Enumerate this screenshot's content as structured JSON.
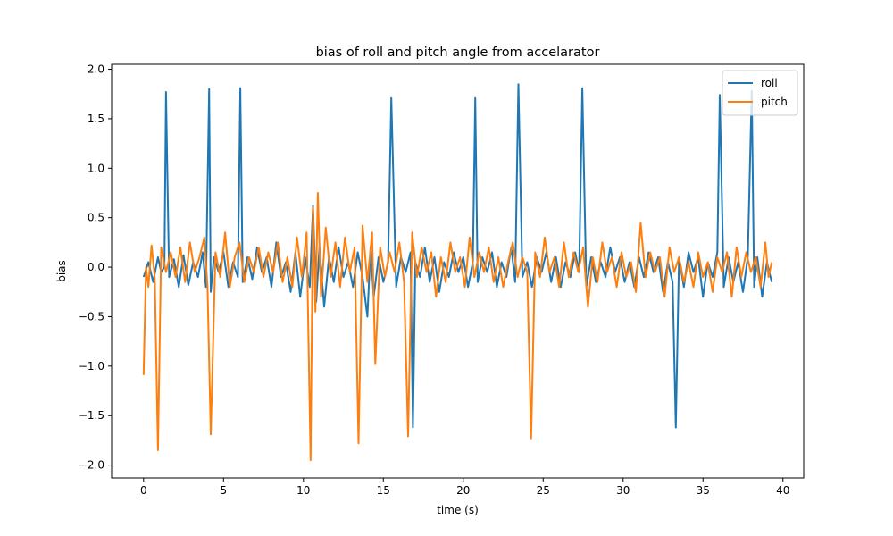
{
  "chart_data": {
    "type": "line",
    "title": "bias of roll and pitch angle from accelarator",
    "xlabel": "time (s)",
    "ylabel": "bias",
    "xlim": [
      -2,
      41.3
    ],
    "ylim": [
      -2.13,
      2.05
    ],
    "xticks": [
      0,
      5,
      10,
      15,
      20,
      25,
      30,
      35,
      40
    ],
    "xtick_labels": [
      "0",
      "5",
      "10",
      "15",
      "20",
      "25",
      "30",
      "35",
      "40"
    ],
    "yticks": [
      -2.0,
      -1.5,
      -1.0,
      -0.5,
      0.0,
      0.5,
      1.0,
      1.5,
      2.0
    ],
    "ytick_labels": [
      "−2.0",
      "−1.5",
      "−1.0",
      "−0.5",
      "0.0",
      "0.5",
      "1.0",
      "1.5",
      "2.0"
    ],
    "grid": false,
    "legend_position": "top-right",
    "series": [
      {
        "name": "roll",
        "color": "#1f77b4",
        "x": [
          0.0,
          0.3,
          0.6,
          0.9,
          1.1,
          1.3,
          1.4,
          1.6,
          1.9,
          2.2,
          2.5,
          2.8,
          3.1,
          3.4,
          3.7,
          3.9,
          4.1,
          4.2,
          4.4,
          4.7,
          5.0,
          5.3,
          5.6,
          5.9,
          6.05,
          6.2,
          6.5,
          6.8,
          7.1,
          7.4,
          7.7,
          8.0,
          8.3,
          8.6,
          8.9,
          9.2,
          9.5,
          9.8,
          10.1,
          10.4,
          10.6,
          10.8,
          11.0,
          11.3,
          11.6,
          11.9,
          12.2,
          12.5,
          12.8,
          13.1,
          13.4,
          13.7,
          14.0,
          14.2,
          14.4,
          14.7,
          15.0,
          15.3,
          15.5,
          15.8,
          16.1,
          16.4,
          16.7,
          16.85,
          17.0,
          17.3,
          17.6,
          17.9,
          18.2,
          18.5,
          18.8,
          19.1,
          19.4,
          19.7,
          20.0,
          20.3,
          20.6,
          20.75,
          20.9,
          21.2,
          21.5,
          21.8,
          22.1,
          22.4,
          22.7,
          23.0,
          23.25,
          23.45,
          23.7,
          24.0,
          24.3,
          24.6,
          24.9,
          25.2,
          25.5,
          25.8,
          26.1,
          26.4,
          26.7,
          27.0,
          27.25,
          27.45,
          27.7,
          28.0,
          28.3,
          28.6,
          28.9,
          29.2,
          29.5,
          29.8,
          30.1,
          30.4,
          30.7,
          31.0,
          31.3,
          31.6,
          31.9,
          32.2,
          32.5,
          32.8,
          33.1,
          33.3,
          33.5,
          33.8,
          34.1,
          34.4,
          34.7,
          35.0,
          35.3,
          35.6,
          35.9,
          36.05,
          36.3,
          36.6,
          36.9,
          37.2,
          37.5,
          37.8,
          38.05,
          38.2,
          38.4,
          38.7,
          39.0,
          39.3
        ],
        "y": [
          -0.1,
          0.05,
          -0.15,
          0.1,
          -0.05,
          0.0,
          1.77,
          -0.1,
          0.08,
          -0.2,
          0.12,
          -0.18,
          0.05,
          -0.1,
          0.15,
          -0.2,
          1.8,
          -0.25,
          0.1,
          -0.05,
          0.15,
          -0.2,
          0.05,
          -0.1,
          1.81,
          -0.15,
          0.1,
          -0.12,
          0.2,
          -0.05,
          0.1,
          -0.2,
          0.25,
          -0.1,
          0.05,
          -0.25,
          0.15,
          -0.3,
          0.1,
          -0.2,
          0.62,
          -0.35,
          0.2,
          -0.4,
          0.1,
          -0.15,
          0.2,
          -0.1,
          0.05,
          -0.2,
          0.15,
          -0.1,
          -0.5,
          0.2,
          -0.3,
          0.1,
          -0.15,
          0.05,
          1.71,
          -0.2,
          0.1,
          -0.05,
          0.15,
          -1.62,
          0.05,
          -0.1,
          0.2,
          -0.15,
          0.1,
          -0.25,
          0.05,
          -0.1,
          0.15,
          -0.05,
          0.1,
          -0.2,
          0.05,
          1.71,
          -0.15,
          0.1,
          -0.05,
          0.15,
          -0.2,
          0.05,
          -0.1,
          0.2,
          -0.15,
          1.85,
          -0.1,
          0.05,
          -0.2,
          0.1,
          -0.05,
          0.15,
          -0.15,
          0.1,
          -0.2,
          0.05,
          -0.1,
          0.15,
          -0.05,
          1.81,
          -0.2,
          0.1,
          -0.15,
          0.05,
          -0.1,
          0.2,
          -0.05,
          0.1,
          -0.15,
          0.05,
          -0.2,
          0.1,
          -0.1,
          0.15,
          -0.05,
          0.1,
          -0.25,
          0.05,
          -0.15,
          -1.62,
          0.1,
          -0.2,
          0.15,
          -0.05,
          0.1,
          -0.3,
          0.05,
          -0.1,
          0.15,
          1.74,
          -0.2,
          0.1,
          -0.15,
          0.05,
          -0.25,
          0.1,
          1.78,
          -0.2,
          0.1,
          -0.3,
          0.05,
          -0.15
        ]
      },
      {
        "name": "pitch",
        "color": "#ff7f0e",
        "x": [
          0.0,
          0.15,
          0.3,
          0.5,
          0.7,
          0.9,
          1.1,
          1.4,
          1.7,
          2.0,
          2.3,
          2.6,
          2.9,
          3.2,
          3.5,
          3.8,
          4.0,
          4.2,
          4.5,
          4.8,
          5.1,
          5.4,
          5.7,
          6.0,
          6.3,
          6.6,
          6.9,
          7.2,
          7.5,
          7.8,
          8.1,
          8.4,
          8.7,
          9.0,
          9.3,
          9.6,
          9.9,
          10.2,
          10.45,
          10.6,
          10.75,
          10.9,
          11.1,
          11.4,
          11.7,
          12.0,
          12.3,
          12.6,
          12.9,
          13.2,
          13.45,
          13.7,
          14.0,
          14.3,
          14.5,
          14.8,
          15.1,
          15.4,
          15.7,
          16.0,
          16.3,
          16.55,
          16.8,
          17.1,
          17.4,
          17.7,
          18.0,
          18.3,
          18.6,
          18.9,
          19.2,
          19.5,
          19.8,
          20.1,
          20.4,
          20.7,
          21.0,
          21.3,
          21.6,
          21.9,
          22.2,
          22.5,
          22.8,
          23.1,
          23.4,
          23.7,
          24.0,
          24.25,
          24.5,
          24.8,
          25.1,
          25.4,
          25.7,
          26.0,
          26.3,
          26.6,
          26.9,
          27.2,
          27.5,
          27.8,
          28.1,
          28.4,
          28.7,
          29.0,
          29.3,
          29.6,
          29.9,
          30.2,
          30.5,
          30.8,
          31.1,
          31.4,
          31.7,
          32.0,
          32.3,
          32.6,
          32.9,
          33.2,
          33.5,
          33.8,
          34.1,
          34.4,
          34.7,
          35.0,
          35.3,
          35.6,
          35.9,
          36.2,
          36.5,
          36.8,
          37.1,
          37.4,
          37.7,
          38.0,
          38.3,
          38.6,
          38.9,
          39.1,
          39.3
        ],
        "y": [
          -1.09,
          0.0,
          -0.2,
          0.22,
          -0.1,
          -1.85,
          0.2,
          -0.05,
          0.15,
          -0.1,
          0.2,
          -0.15,
          0.25,
          -0.05,
          0.1,
          0.3,
          -0.2,
          -1.69,
          0.15,
          -0.1,
          0.35,
          -0.2,
          0.1,
          0.25,
          -0.15,
          0.1,
          -0.05,
          0.2,
          -0.1,
          0.15,
          -0.05,
          0.25,
          -0.15,
          0.1,
          -0.2,
          0.3,
          -0.1,
          0.35,
          -1.95,
          0.6,
          -0.45,
          0.75,
          -0.3,
          0.4,
          -0.1,
          0.25,
          -0.2,
          0.3,
          -0.05,
          0.2,
          -1.78,
          0.42,
          -0.15,
          0.35,
          -0.98,
          0.2,
          -0.1,
          0.15,
          -0.05,
          0.25,
          -0.15,
          -1.71,
          0.35,
          -0.1,
          0.2,
          -0.05,
          0.15,
          -0.3,
          0.1,
          -0.15,
          0.25,
          -0.05,
          0.1,
          -0.2,
          0.3,
          -0.1,
          0.15,
          -0.05,
          0.2,
          -0.15,
          0.1,
          -0.2,
          0.05,
          0.25,
          -0.1,
          0.1,
          -0.05,
          -1.73,
          0.15,
          -0.1,
          0.3,
          -0.05,
          0.1,
          -0.2,
          0.25,
          -0.1,
          0.15,
          -0.05,
          0.2,
          -0.4,
          0.1,
          -0.15,
          0.25,
          -0.05,
          0.1,
          -0.2,
          0.15,
          -0.1,
          0.05,
          -0.25,
          0.45,
          -0.1,
          0.15,
          -0.05,
          0.1,
          -0.3,
          0.2,
          -0.05,
          0.1,
          -0.15,
          0.05,
          -0.2,
          0.15,
          -0.1,
          0.05,
          -0.25,
          0.1,
          -0.05,
          0.15,
          -0.3,
          0.2,
          -0.1,
          0.15,
          -0.05,
          0.1,
          -0.2,
          0.25,
          -0.1,
          0.05
        ]
      }
    ]
  }
}
